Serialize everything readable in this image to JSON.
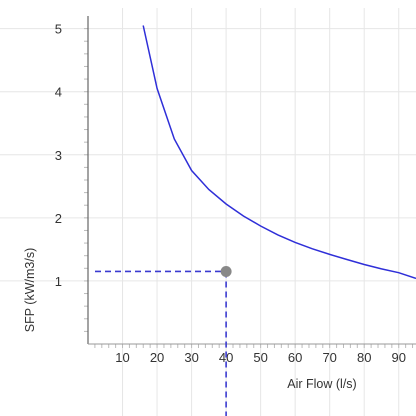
{
  "chart_data": {
    "type": "line",
    "title": "",
    "xlabel": "Air Flow (l/s)",
    "ylabel": "SFP (kW/m3/s)",
    "xlim": [
      0,
      95
    ],
    "ylim": [
      0,
      5.2
    ],
    "xticks": [
      10,
      20,
      30,
      40,
      50,
      60,
      70,
      80,
      90
    ],
    "yticks": [
      1,
      2,
      3,
      4,
      5
    ],
    "grid": true,
    "legend": "none",
    "series": [
      {
        "x": [
          16,
          20,
          25,
          30,
          35,
          40,
          45,
          50,
          55,
          60,
          65,
          70,
          75,
          80,
          85,
          90,
          95
        ],
        "y": [
          5.05,
          4.05,
          3.25,
          2.75,
          2.45,
          2.22,
          2.03,
          1.87,
          1.73,
          1.61,
          1.51,
          1.42,
          1.34,
          1.26,
          1.19,
          1.13,
          1.04
        ]
      }
    ],
    "marker": {
      "x": 40,
      "y": 1.15
    },
    "colors": {
      "curve": "#2f2fd8",
      "guide": "#3a3ad0",
      "marker": "#888888",
      "grid": "#e6e6e6",
      "axis": "#666666"
    }
  }
}
